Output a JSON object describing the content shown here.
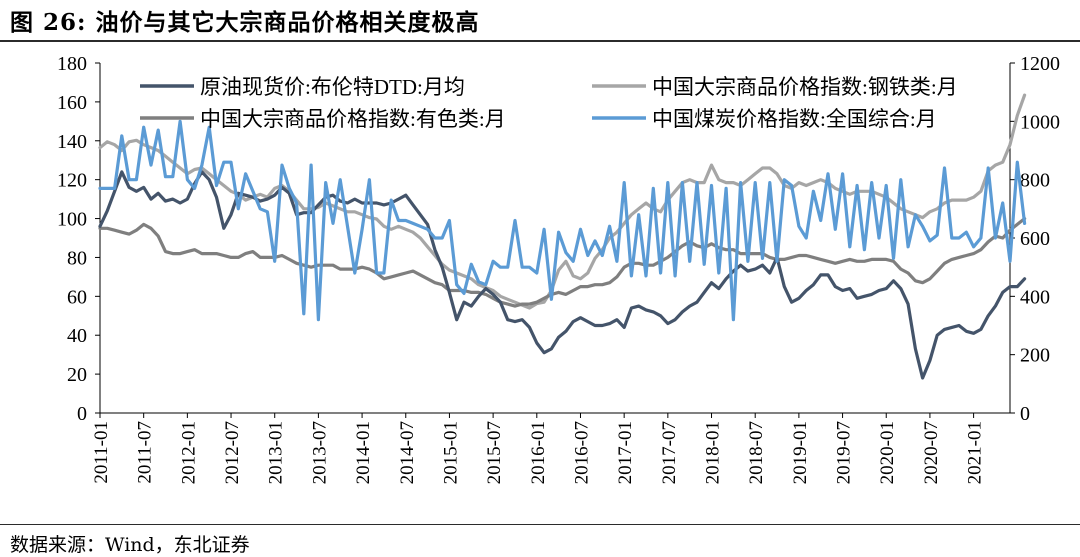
{
  "title": "图 26: 油价与其它大宗商品价格相关度极高",
  "source": "数据来源：Wind，东北证券",
  "colors": {
    "crude": "#44546a",
    "steel": "#a6a6a6",
    "nonferrous": "#7f7f7f",
    "coal": "#5b9bd5"
  },
  "chart_data": {
    "type": "line",
    "x_start": "2011-01",
    "x_end": "2021-06",
    "x_ticks": [
      "2011-01",
      "2011-07",
      "2012-01",
      "2012-07",
      "2013-01",
      "2013-07",
      "2014-01",
      "2014-07",
      "2015-01",
      "2015-07",
      "2016-01",
      "2016-07",
      "2017-01",
      "2017-07",
      "2018-01",
      "2018-07",
      "2019-01",
      "2019-07",
      "2020-01",
      "2020-07",
      "2021-01"
    ],
    "y_left": {
      "lim": [
        0,
        180
      ],
      "ticks": [
        0,
        20,
        40,
        60,
        80,
        100,
        120,
        140,
        160,
        180
      ]
    },
    "y_right": {
      "lim": [
        0,
        1200
      ],
      "ticks": [
        0,
        200,
        400,
        600,
        800,
        1000,
        1200
      ]
    },
    "legend": {
      "placement": "top",
      "columns": 2
    },
    "series": [
      {
        "name": "原油现货价:布伦特DTD:月均",
        "color_key": "crude",
        "axis": "left",
        "values": [
          96,
          104,
          114,
          124,
          116,
          114,
          116,
          110,
          113,
          109,
          110,
          108,
          110,
          118,
          124,
          120,
          111,
          95,
          102,
          113,
          112,
          111,
          109,
          110,
          112,
          116,
          113,
          102,
          103,
          103,
          107,
          111,
          112,
          109,
          108,
          110,
          108,
          108,
          108,
          107,
          108,
          110,
          112,
          107,
          102,
          97,
          84,
          75,
          62,
          48,
          57,
          55,
          60,
          64,
          61,
          57,
          48,
          47,
          48,
          44,
          36,
          31,
          33,
          39,
          42,
          47,
          49,
          47,
          45,
          45,
          46,
          48,
          44,
          54,
          55,
          53,
          52,
          50,
          46,
          48,
          52,
          55,
          57,
          62,
          67,
          64,
          69,
          73,
          76,
          73,
          74,
          76,
          72,
          80,
          65,
          57,
          59,
          63,
          66,
          71,
          71,
          65,
          63,
          64,
          59,
          60,
          61,
          63,
          64,
          68,
          64,
          56,
          33,
          18,
          27,
          40,
          43,
          44,
          45,
          42,
          41,
          43,
          50,
          55,
          62,
          65,
          65,
          69
        ]
      },
      {
        "name": "中国大宗商品价格指数:钢铁类:月",
        "color_key": "steel",
        "axis": "right",
        "values": [
          910,
          930,
          920,
          900,
          930,
          935,
          920,
          910,
          900,
          880,
          860,
          840,
          820,
          835,
          840,
          820,
          800,
          780,
          760,
          750,
          730,
          740,
          750,
          740,
          770,
          780,
          760,
          730,
          700,
          700,
          705,
          720,
          710,
          700,
          690,
          690,
          680,
          670,
          665,
          640,
          630,
          640,
          630,
          620,
          600,
          570,
          540,
          510,
          490,
          480,
          470,
          460,
          440,
          430,
          420,
          400,
          390,
          380,
          370,
          360,
          375,
          380,
          420,
          490,
          520,
          470,
          460,
          480,
          530,
          560,
          600,
          620,
          650,
          680,
          700,
          720,
          700,
          690,
          730,
          760,
          790,
          800,
          790,
          790,
          850,
          800,
          790,
          790,
          780,
          800,
          820,
          840,
          840,
          820,
          780,
          770,
          790,
          780,
          790,
          800,
          790,
          770,
          760,
          750,
          760,
          760,
          760,
          750,
          740,
          720,
          700,
          690,
          680,
          670,
          690,
          700,
          720,
          730,
          730,
          730,
          740,
          760,
          830,
          850,
          860,
          920,
          1020,
          1090
        ]
      },
      {
        "name": "中国大宗商品价格指数:有色类:月",
        "color_key": "nonferrous",
        "axis": "left",
        "values": [
          95,
          95,
          94,
          93,
          92,
          94,
          97,
          95,
          91,
          83,
          82,
          82,
          83,
          84,
          82,
          82,
          82,
          81,
          80,
          80,
          82,
          83,
          80,
          80,
          80,
          81,
          79,
          77,
          76,
          75,
          76,
          76,
          76,
          74,
          74,
          74,
          75,
          74,
          72,
          69,
          70,
          71,
          72,
          73,
          71,
          69,
          67,
          66,
          63,
          63,
          63,
          62,
          62,
          61,
          59,
          57,
          56,
          55,
          56,
          56,
          57,
          59,
          61,
          62,
          61,
          63,
          65,
          65,
          66,
          66,
          67,
          70,
          75,
          77,
          77,
          76,
          76,
          78,
          80,
          83,
          86,
          88,
          86,
          85,
          87,
          85,
          84,
          84,
          82,
          82,
          82,
          82,
          80,
          79,
          79,
          80,
          81,
          81,
          80,
          79,
          78,
          77,
          78,
          79,
          78,
          78,
          79,
          79,
          79,
          78,
          74,
          72,
          68,
          67,
          69,
          73,
          77,
          79,
          80,
          81,
          82,
          84,
          88,
          91,
          90,
          94,
          97,
          100
        ]
      },
      {
        "name": "中国煤炭价格指数:全国综合:月",
        "color_key": "coal",
        "axis": "right",
        "values": [
          770,
          770,
          770,
          950,
          800,
          800,
          980,
          850,
          970,
          810,
          810,
          1000,
          800,
          770,
          850,
          980,
          780,
          860,
          860,
          700,
          820,
          760,
          700,
          690,
          520,
          850,
          770,
          720,
          340,
          850,
          320,
          790,
          650,
          800,
          640,
          480,
          630,
          800,
          480,
          480,
          730,
          660,
          660,
          650,
          640,
          630,
          600,
          600,
          660,
          440,
          410,
          510,
          450,
          440,
          520,
          500,
          500,
          660,
          500,
          500,
          480,
          630,
          390,
          620,
          550,
          520,
          630,
          540,
          590,
          540,
          640,
          520,
          790,
          470,
          680,
          470,
          770,
          480,
          790,
          470,
          790,
          520,
          790,
          510,
          780,
          480,
          770,
          320,
          790,
          520,
          790,
          530,
          790,
          520,
          800,
          780,
          640,
          600,
          760,
          660,
          820,
          630,
          820,
          570,
          780,
          560,
          790,
          600,
          780,
          530,
          800,
          570,
          680,
          640,
          590,
          610,
          840,
          600,
          600,
          620,
          570,
          600,
          840,
          600,
          720,
          520,
          860,
          650
        ]
      }
    ]
  }
}
